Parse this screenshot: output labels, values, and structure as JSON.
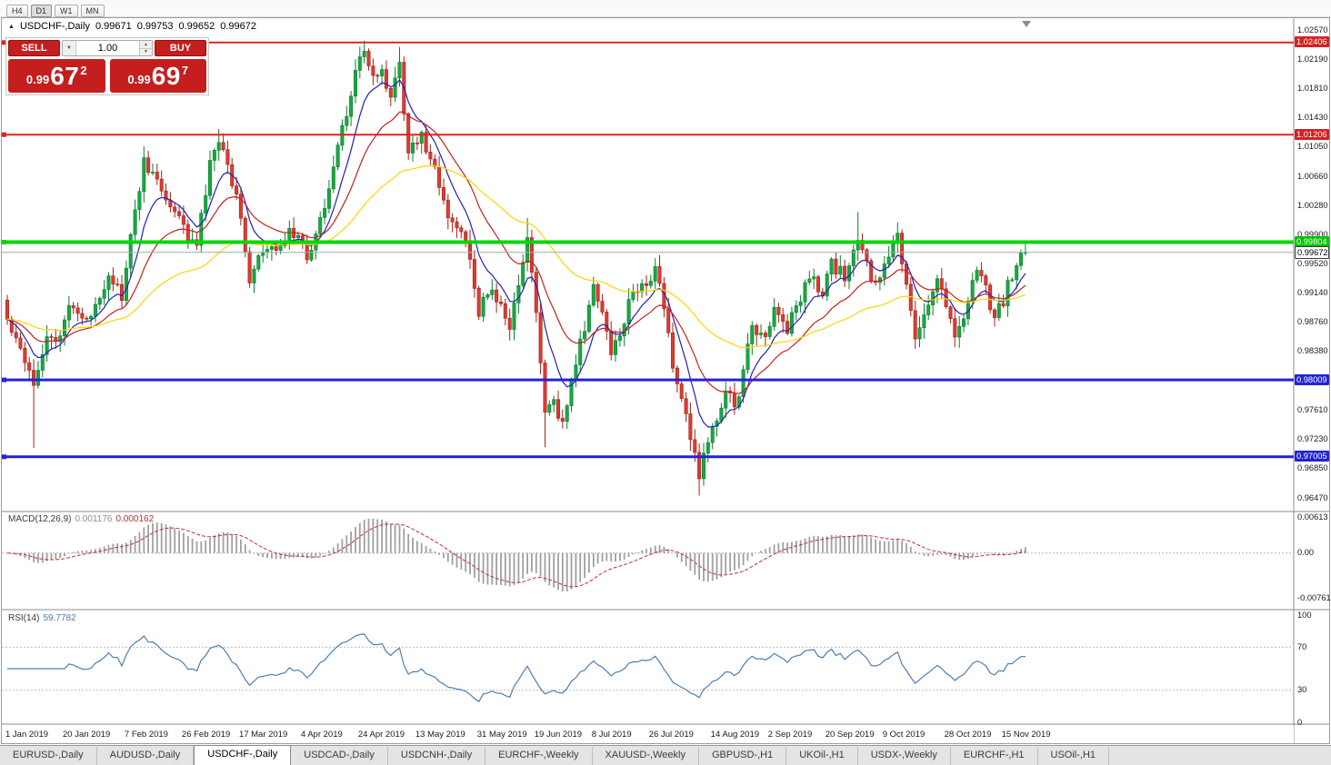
{
  "app": {
    "toolbar": {
      "timeframes": [
        "H4",
        "D1",
        "W1",
        "MN"
      ],
      "active": "D1"
    },
    "title": {
      "symbol": "USDCHF-,Daily",
      "open": "0.99671",
      "high": "0.99753",
      "low": "0.99652",
      "close": "0.99672"
    }
  },
  "icons": {
    "panel_toggle": "▲",
    "dropdown_arrow": "▼",
    "spin_up": "▲",
    "spin_down": "▼"
  },
  "trade_panel": {
    "color": "#C41E1E",
    "sell_label": "SELL",
    "buy_label": "BUY",
    "lot_size": "1.00",
    "sell_price": {
      "prefix": "0.99",
      "big": "67",
      "sup": "2"
    },
    "buy_price": {
      "prefix": "0.99",
      "big": "69",
      "sup": "7"
    }
  },
  "chart_data": {
    "type": "candlestick",
    "instrument": "USDCHF",
    "period": "Daily",
    "candle_count": 232,
    "last_close": 0.99672,
    "price_axis": {
      "max": 1.0257,
      "min": 0.9647,
      "ticks": [
        "1.02570",
        "1.02190",
        "1.01810",
        "1.01430",
        "1.01050",
        "1.00660",
        "1.00280",
        "0.99900",
        "0.99520",
        "0.99140",
        "0.98760",
        "0.98380",
        "0.98000",
        "0.97610",
        "0.97230",
        "0.96850",
        "0.96470"
      ],
      "badges": [
        {
          "price": 1.02406,
          "text": "1.02406",
          "bg": "#D42121",
          "fg": "#FFFFFF"
        },
        {
          "price": 1.01206,
          "text": "1.01206",
          "bg": "#D42121",
          "fg": "#FFFFFF"
        },
        {
          "price": 0.99804,
          "text": "0.99804",
          "bg": "#00C400",
          "fg": "#FFFFFF"
        },
        {
          "price": 0.99672,
          "text": "0.99672",
          "bg": "#FFFFFF",
          "fg": "#000000",
          "border": "#3C3C3C"
        },
        {
          "price": 0.98009,
          "text": "0.98009",
          "bg": "#2222D8",
          "fg": "#FFFFFF"
        },
        {
          "price": 0.97005,
          "text": "0.97005",
          "bg": "#2222D8",
          "fg": "#FFFFFF"
        }
      ]
    },
    "levels": [
      {
        "price": 1.02406,
        "color": "#E02222",
        "width": 2
      },
      {
        "price": 1.01206,
        "color": "#E02222",
        "width": 2
      },
      {
        "price": 0.99804,
        "color": "#00D800",
        "width": 4
      },
      {
        "price": 0.98009,
        "color": "#2222DE",
        "width": 3
      },
      {
        "price": 0.97005,
        "color": "#2222DE",
        "width": 3
      }
    ],
    "current_price_line_color": "#A8A8A8",
    "colors": {
      "bull": "#17A942",
      "bull_dark": "#0B7F2E",
      "bear": "#DE3B32",
      "bear_dark": "#A12318"
    },
    "moving_averages": [
      {
        "period": 8,
        "color": "#2020B8"
      },
      {
        "period": 20,
        "color": "#C42020"
      },
      {
        "period": 55,
        "color": "#FFD400"
      }
    ],
    "anchors": [
      [
        0,
        0.988
      ],
      [
        3,
        0.9845
      ],
      [
        6,
        0.98
      ],
      [
        9,
        0.9858
      ],
      [
        12,
        0.985
      ],
      [
        14,
        0.9905
      ],
      [
        18,
        0.9873
      ],
      [
        23,
        0.994
      ],
      [
        26,
        0.9908
      ],
      [
        29,
        1.002
      ],
      [
        31,
        1.0085
      ],
      [
        34,
        1.006
      ],
      [
        37,
        1.0028
      ],
      [
        41,
        0.999
      ],
      [
        43,
        0.9975
      ],
      [
        46,
        1.008
      ],
      [
        48,
        1.0115
      ],
      [
        50,
        1.008
      ],
      [
        53,
        1.002
      ],
      [
        55,
        0.9925
      ],
      [
        57,
        0.9958
      ],
      [
        60,
        0.997
      ],
      [
        65,
        0.9995
      ],
      [
        68,
        0.996
      ],
      [
        71,
        1.001
      ],
      [
        74,
        1.008
      ],
      [
        77,
        1.015
      ],
      [
        79,
        1.0205
      ],
      [
        81,
        1.0226
      ],
      [
        83,
        1.019
      ],
      [
        85,
        1.0205
      ],
      [
        87,
        1.0168
      ],
      [
        89,
        1.021
      ],
      [
        91,
        1.0095
      ],
      [
        94,
        1.0118
      ],
      [
        96,
        1.009
      ],
      [
        99,
        1.0035
      ],
      [
        101,
        1.0
      ],
      [
        104,
        0.9985
      ],
      [
        107,
        0.989
      ],
      [
        110,
        0.992
      ],
      [
        112,
        0.9895
      ],
      [
        114,
        0.9868
      ],
      [
        117,
        0.995
      ],
      [
        118,
        0.9985
      ],
      [
        120,
        0.989
      ],
      [
        122,
        0.976
      ],
      [
        124,
        0.9768
      ],
      [
        126,
        0.9745
      ],
      [
        128,
        0.98
      ],
      [
        131,
        0.987
      ],
      [
        133,
        0.992
      ],
      [
        135,
        0.989
      ],
      [
        137,
        0.984
      ],
      [
        139,
        0.9855
      ],
      [
        141,
        0.9905
      ],
      [
        144,
        0.9925
      ],
      [
        147,
        0.9945
      ],
      [
        149,
        0.99
      ],
      [
        151,
        0.982
      ],
      [
        153,
        0.978
      ],
      [
        155,
        0.972
      ],
      [
        157,
        0.968
      ],
      [
        159,
        0.9718
      ],
      [
        161,
        0.9745
      ],
      [
        163,
        0.979
      ],
      [
        165,
        0.9762
      ],
      [
        167,
        0.981
      ],
      [
        169,
        0.987
      ],
      [
        172,
        0.9855
      ],
      [
        174,
        0.9895
      ],
      [
        177,
        0.987
      ],
      [
        180,
        0.9905
      ],
      [
        182,
        0.994
      ],
      [
        185,
        0.991
      ],
      [
        187,
        0.995
      ],
      [
        190,
        0.9935
      ],
      [
        193,
        0.9985
      ],
      [
        195,
        0.995
      ],
      [
        197,
        0.992
      ],
      [
        199,
        0.996
      ],
      [
        202,
        0.9985
      ],
      [
        204,
        0.992
      ],
      [
        206,
        0.986
      ],
      [
        208,
        0.988
      ],
      [
        211,
        0.994
      ],
      [
        213,
        0.99
      ],
      [
        215,
        0.9855
      ],
      [
        218,
        0.9905
      ],
      [
        220,
        0.995
      ],
      [
        222,
        0.992
      ],
      [
        224,
        0.988
      ],
      [
        226,
        0.9905
      ],
      [
        228,
        0.994
      ],
      [
        231,
        0.99672
      ]
    ],
    "spikes": [
      {
        "i": 6,
        "low": 0.9712
      },
      {
        "i": 48,
        "high": 1.0128
      },
      {
        "i": 81,
        "high": 1.0243
      },
      {
        "i": 89,
        "high": 1.0235
      },
      {
        "i": 94,
        "high": 1.0125
      },
      {
        "i": 118,
        "high": 1.0012
      },
      {
        "i": 122,
        "low": 0.9713
      },
      {
        "i": 126,
        "low": 0.9739
      },
      {
        "i": 157,
        "low": 0.965
      },
      {
        "i": 193,
        "high": 1.002
      },
      {
        "i": 202,
        "high": 0.9996
      },
      {
        "i": 231,
        "high": 0.998
      }
    ],
    "date_ticks": [
      {
        "i": 0,
        "label": "1 Jan 2019"
      },
      {
        "i": 13,
        "label": "20 Jan 2019"
      },
      {
        "i": 27,
        "label": "7 Feb 2019"
      },
      {
        "i": 40,
        "label": "26 Feb 2019"
      },
      {
        "i": 53,
        "label": "17 Mar 2019"
      },
      {
        "i": 67,
        "label": "4 Apr 2019"
      },
      {
        "i": 80,
        "label": "24 Apr 2019"
      },
      {
        "i": 93,
        "label": "13 May 2019"
      },
      {
        "i": 107,
        "label": "31 May 2019"
      },
      {
        "i": 120,
        "label": "19 Jun 2019"
      },
      {
        "i": 133,
        "label": "8 Jul 2019"
      },
      {
        "i": 146,
        "label": "26 Jul 2019"
      },
      {
        "i": 160,
        "label": "14 Aug 2019"
      },
      {
        "i": 173,
        "label": "2 Sep 2019"
      },
      {
        "i": 186,
        "label": "20 Sep 2019"
      },
      {
        "i": 199,
        "label": "9 Oct 2019"
      },
      {
        "i": 213,
        "label": "28 Oct 2019"
      },
      {
        "i": 226,
        "label": "15 Nov 2019"
      }
    ],
    "indicators": {
      "macd": {
        "label": "MACD(12,26,9)",
        "value_main": "0.001176",
        "value_signal": "0.000162",
        "fast": 12,
        "slow": 26,
        "signal": 9,
        "ylim": [
          -0.00761,
          0.00613
        ],
        "axis": [
          {
            "v": 0.00613,
            "t": "0.00613"
          },
          {
            "v": 0,
            "t": "0.00"
          },
          {
            "v": -0.00761,
            "t": "-0.00761"
          }
        ],
        "histogram_color": "#A0A0A0",
        "signal_color": "#C23030"
      },
      "rsi": {
        "label": "RSI(14)",
        "value": "59.7782",
        "period": 14,
        "levels": [
          70,
          30
        ],
        "axis": [
          {
            "v": 100,
            "t": "100"
          },
          {
            "v": 70,
            "t": "70"
          },
          {
            "v": 30,
            "t": "30"
          },
          {
            "v": 0,
            "t": "0"
          }
        ],
        "line_color": "#4A7EB5"
      }
    }
  },
  "tabs": {
    "items": [
      "EURUSD-,Daily",
      "AUDUSD-,Daily",
      "USDCHF-,Daily",
      "USDCAD-,Daily",
      "USDCNH-,Daily",
      "EURCHF-,Weekly",
      "XAUUSD-,Weekly",
      "GBPUSD-,H1",
      "UKOil-,H1",
      "USDX-,Weekly",
      "EURCHF-,H1",
      "USOil-,H1"
    ],
    "active_index": 2
  }
}
